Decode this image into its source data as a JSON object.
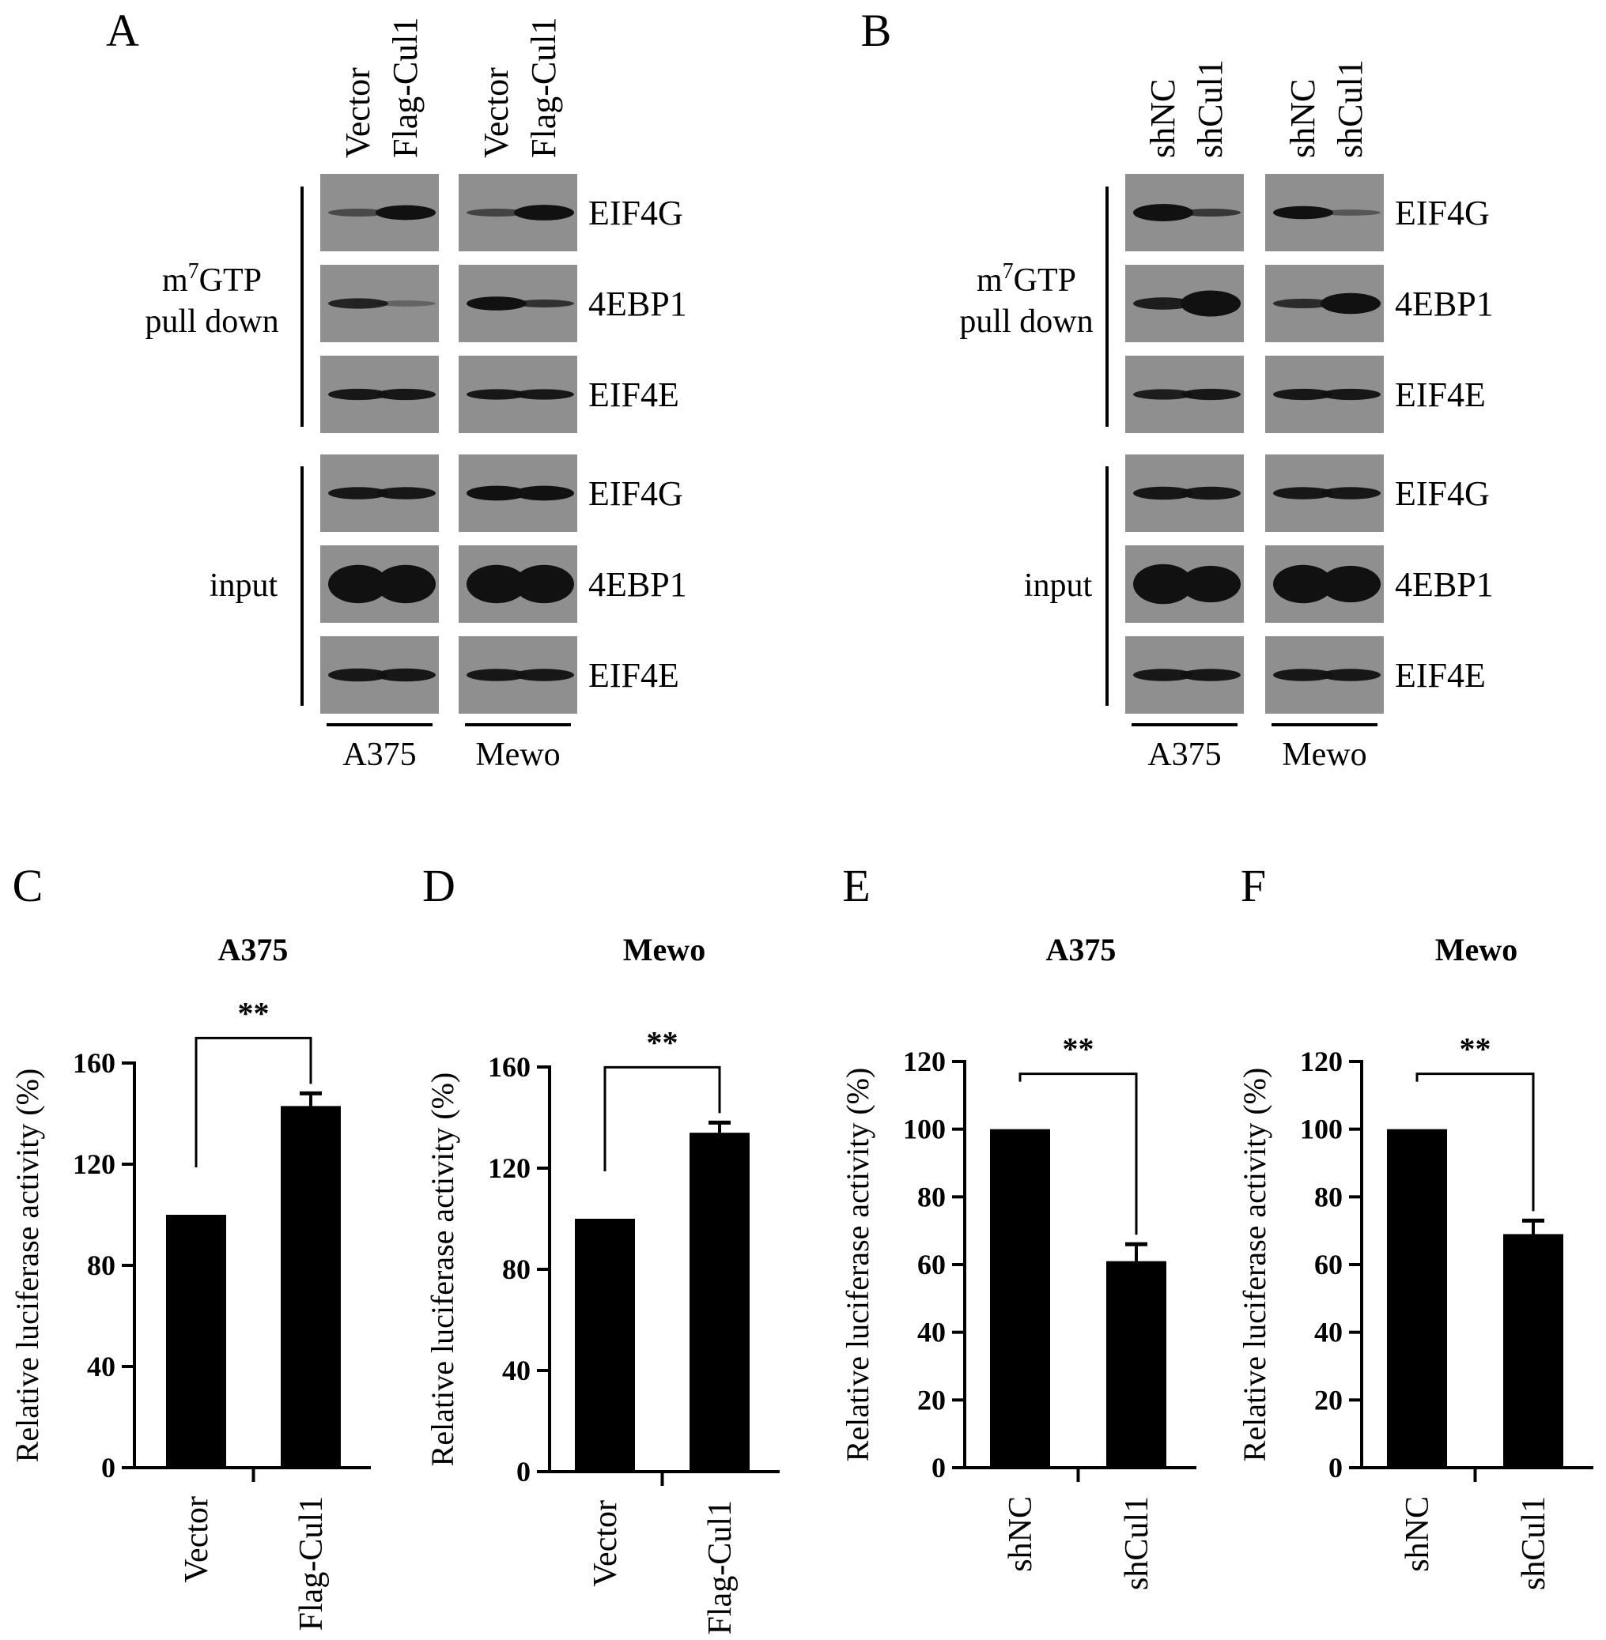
{
  "blots": [
    {
      "panel": "A",
      "lanes": [
        "Vector",
        "Flag-Cul1",
        "Vector",
        "Flag-Cul1"
      ],
      "groups": [
        "m7GTP pull down",
        "input"
      ],
      "group_display": {
        "pulldown_prefix": "m",
        "pulldown_sup": "7",
        "pulldown_rest": "GTP",
        "pulldown_line2": "pull down",
        "input": "input"
      },
      "proteins": [
        "EIF4G",
        "4EBP1",
        "EIF4E",
        "EIF4G",
        "4EBP1",
        "EIF4E"
      ],
      "cell_lines": [
        "A375",
        "Mewo"
      ]
    },
    {
      "panel": "B",
      "lanes": [
        "shNC",
        "shCul1",
        "shNC",
        "shCul1"
      ],
      "groups": [
        "m7GTP pull down",
        "input"
      ],
      "group_display": {
        "pulldown_prefix": "m",
        "pulldown_sup": "7",
        "pulldown_rest": "GTP",
        "pulldown_line2": "pull down",
        "input": "input"
      },
      "proteins": [
        "EIF4G",
        "4EBP1",
        "EIF4E",
        "EIF4G",
        "4EBP1",
        "EIF4E"
      ],
      "cell_lines": [
        "A375",
        "Mewo"
      ]
    }
  ],
  "colors": {
    "bar": "#000000",
    "blot_bg": "#8f8f8f",
    "band": "#111111"
  },
  "chart_data": [
    {
      "panel": "C",
      "type": "bar",
      "title": "A375",
      "ylabel": "Relative luciferase activity (%)",
      "categories": [
        "Vector",
        "Flag-Cul1"
      ],
      "values": [
        100,
        143
      ],
      "errors": [
        0,
        5
      ],
      "ylim": [
        0,
        160
      ],
      "yticks": [
        0,
        40,
        80,
        120,
        160
      ],
      "significance": "**"
    },
    {
      "panel": "D",
      "type": "bar",
      "title": "Mewo",
      "ylabel": "Relative luciferase activity (%)",
      "categories": [
        "Vector",
        "Flag-Cul1"
      ],
      "values": [
        100,
        134
      ],
      "errors": [
        0,
        4
      ],
      "ylim": [
        0,
        160
      ],
      "yticks": [
        0,
        40,
        80,
        120,
        160
      ],
      "significance": "**"
    },
    {
      "panel": "E",
      "type": "bar",
      "title": "A375",
      "ylabel": "Relative luciferase activity (%)",
      "categories": [
        "shNC",
        "shCul1"
      ],
      "values": [
        100,
        61
      ],
      "errors": [
        0,
        5
      ],
      "ylim": [
        0,
        120
      ],
      "yticks": [
        0,
        20,
        40,
        60,
        80,
        100,
        120
      ],
      "significance": "**"
    },
    {
      "panel": "F",
      "type": "bar",
      "title": "Mewo",
      "ylabel": "Relative luciferase activity (%)",
      "categories": [
        "shNC",
        "shCul1"
      ],
      "values": [
        100,
        69
      ],
      "errors": [
        0,
        4
      ],
      "ylim": [
        0,
        120
      ],
      "yticks": [
        0,
        20,
        40,
        60,
        80,
        100,
        120
      ],
      "significance": "**"
    }
  ]
}
